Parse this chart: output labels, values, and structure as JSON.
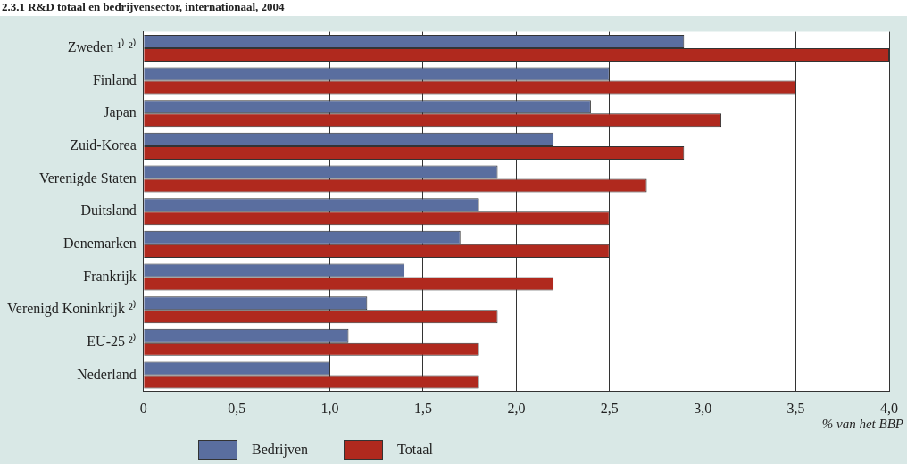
{
  "chart_data": {
    "type": "bar",
    "orientation": "horizontal",
    "title": "2.3.1 R&D totaal en bedrijvensector, internationaal, 2004",
    "xlabel": "% van het BBP",
    "categories": [
      "Zweden ¹⁾ ²⁾",
      "Finland",
      "Japan",
      "Zuid-Korea",
      "Verenigde Staten",
      "Duitsland",
      "Denemarken",
      "Frankrijk",
      "Verenigd Koninkrijk ²⁾",
      "EU-25 ²⁾",
      "Nederland"
    ],
    "series": [
      {
        "name": "Bedrijven",
        "color": "#5a6e9f",
        "values": [
          2.9,
          2.5,
          2.4,
          2.2,
          1.9,
          1.8,
          1.7,
          1.4,
          1.2,
          1.1,
          1.0
        ]
      },
      {
        "name": "Totaal",
        "color": "#b0291e",
        "values": [
          4.0,
          3.5,
          3.1,
          2.9,
          2.7,
          2.5,
          2.5,
          2.2,
          1.9,
          1.8,
          1.8
        ]
      }
    ],
    "xlim": [
      0,
      4
    ],
    "xticks": [
      0,
      {
        "value": 0.5,
        "label": "0,5"
      },
      {
        "value": 1,
        "label": "1,0"
      },
      {
        "value": 1.5,
        "label": "1,5"
      },
      {
        "value": 2,
        "label": "2,0"
      },
      {
        "value": 2.5,
        "label": "2,5"
      },
      {
        "value": 3,
        "label": "3,0"
      },
      {
        "value": 3.5,
        "label": "3,5"
      },
      {
        "value": 4,
        "label": "4,0"
      }
    ],
    "grid": "x",
    "legend": "bottom left"
  }
}
